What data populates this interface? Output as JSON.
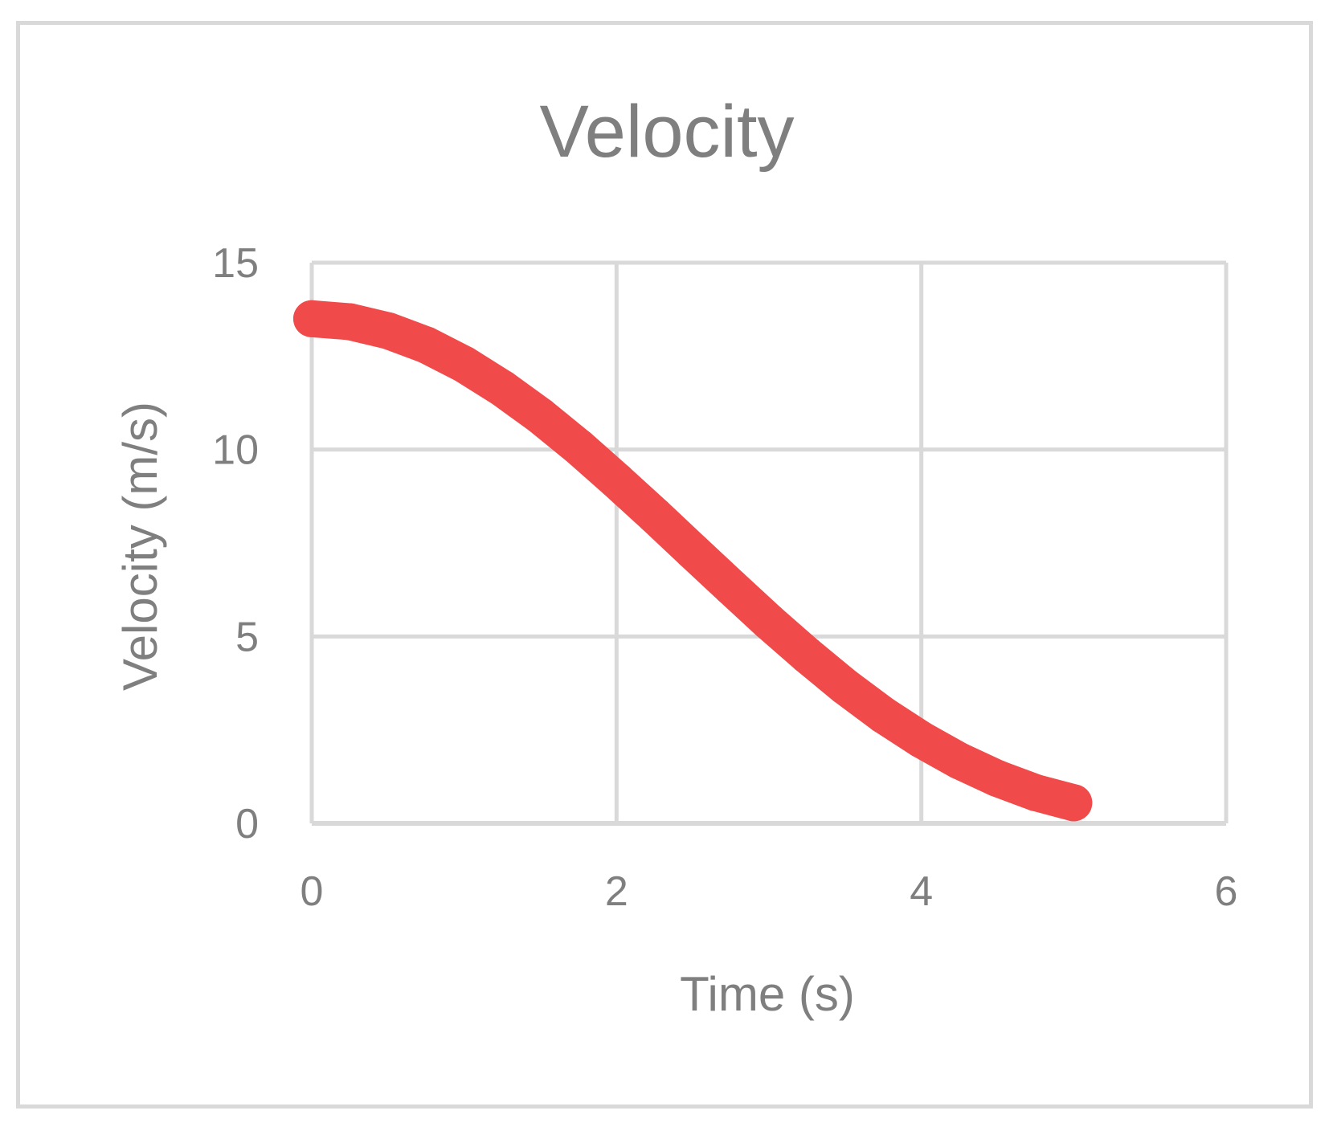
{
  "chart_data": {
    "type": "scatter",
    "title": "Velocity",
    "xlabel": "Time (s)",
    "ylabel": "Velocity (m/s)",
    "xlim": [
      0,
      6
    ],
    "ylim": [
      0,
      15
    ],
    "x_ticks": [
      0,
      2,
      4,
      6
    ],
    "y_ticks": [
      0,
      5,
      10,
      15
    ],
    "x_tick_labels": [
      "0",
      "2",
      "4",
      "6"
    ],
    "y_tick_labels": [
      "0",
      "5",
      "10",
      "15"
    ],
    "grid": true,
    "legend": "none",
    "series": [
      {
        "name": "Velocity",
        "color": "#f04a4a",
        "x": [
          0,
          0.25,
          0.5,
          0.75,
          1,
          1.25,
          1.5,
          1.75,
          2,
          2.25,
          2.5,
          2.75,
          3,
          3.25,
          3.5,
          3.75,
          4,
          4.25,
          4.5,
          4.75,
          5
        ],
        "y": [
          13.5,
          13.42,
          13.18,
          12.8,
          12.28,
          11.64,
          10.9,
          10.07,
          9.17,
          8.24,
          7.28,
          6.33,
          5.39,
          4.5,
          3.66,
          2.9,
          2.24,
          1.67,
          1.2,
          0.82,
          0.55
        ]
      }
    ]
  }
}
